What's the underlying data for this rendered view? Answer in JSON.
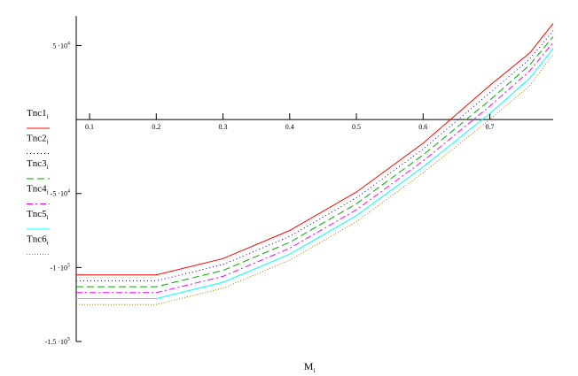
{
  "chart_data": {
    "type": "line",
    "xlabel": {
      "base": "M",
      "sub": "i"
    },
    "x": [
      0.08,
      0.2,
      0.3,
      0.4,
      0.5,
      0.6,
      0.7,
      0.76,
      0.795
    ],
    "xticks": [
      "0.1",
      "0.2",
      "0.3",
      "0.4",
      "0.5",
      "0.6",
      "0.7"
    ],
    "xtick_values": [
      0.1,
      0.2,
      0.3,
      0.4,
      0.5,
      0.6,
      0.7
    ],
    "yticks": [
      {
        "value": 50000,
        "mant": "5",
        "times": "·10",
        "exp": "4"
      },
      {
        "value": -50000,
        "mant": "-5",
        "times": "·10",
        "exp": "4"
      },
      {
        "value": -100000,
        "mant": "-1",
        "times": "·10",
        "exp": "5"
      },
      {
        "value": -150000,
        "mant": "-1.5",
        "times": "·10",
        "exp": "5"
      }
    ],
    "xlim": [
      0.08,
      0.795
    ],
    "ylim": [
      -150000,
      70000
    ],
    "grid": false,
    "legend_position": "left",
    "series": [
      {
        "name": "Tnc1",
        "sub": "i",
        "color": "#ff0000",
        "dash": "",
        "values": [
          -105000,
          -105000,
          -94000,
          -75000,
          -49000,
          -16000,
          23000,
          45000,
          65000
        ]
      },
      {
        "name": "Tnc2",
        "sub": "i",
        "color": "#0000c0",
        "dash": "1,3",
        "values": [
          -109000,
          -109000,
          -98000,
          -79000,
          -53000,
          -20000,
          18000,
          41000,
          60000
        ]
      },
      {
        "name": "Tnc3",
        "sub": "i",
        "color": "#00aa00",
        "dash": "8,4",
        "values": [
          -113000,
          -113000,
          -102000,
          -83000,
          -57000,
          -24000,
          13000,
          37000,
          56000
        ]
      },
      {
        "name": "Tnc4",
        "sub": "i",
        "color": "#ff00ff",
        "dash": "7,3,2,3",
        "values": [
          -117000,
          -117000,
          -106000,
          -87000,
          -61000,
          -28000,
          9000,
          33000,
          52000
        ]
      },
      {
        "name": "Tnc5",
        "sub": "i",
        "color": "#00ffff",
        "dash": "",
        "values": [
          -121000,
          -121000,
          -110000,
          -91000,
          -65000,
          -32000,
          4000,
          28000,
          48000
        ]
      },
      {
        "name": "Tnc6",
        "sub": "i",
        "color": "#a08000",
        "dash": "1,2",
        "values": [
          -125000,
          -125000,
          -114000,
          -95000,
          -69000,
          -36000,
          0,
          23000,
          44000
        ]
      }
    ]
  }
}
